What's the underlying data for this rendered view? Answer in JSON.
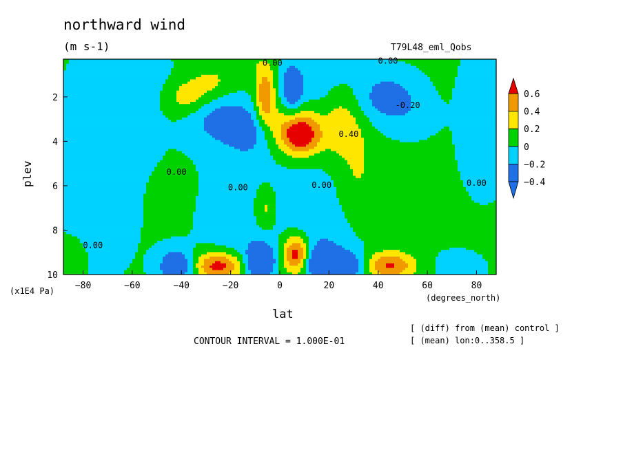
{
  "chart_data": {
    "type": "heatmap",
    "title": "northward wind",
    "units": "(m s-1)",
    "run_label": "T79L48_eml_Qobs",
    "xlabel": "lat",
    "ylabel": "plev",
    "x_units": "(degrees_north)",
    "y_units": "(x1E4 Pa)",
    "xlim": [
      -88,
      88
    ],
    "ylim": [
      10,
      0.3
    ],
    "x_ticks": [
      -80,
      -60,
      -40,
      -20,
      0,
      20,
      40,
      60,
      80
    ],
    "x_tick_labels": [
      "−80",
      "−60",
      "−40",
      "−20",
      "0",
      "20",
      "40",
      "60",
      "80"
    ],
    "y_ticks": [
      2,
      4,
      6,
      8,
      10
    ],
    "y_tick_labels": [
      "2",
      "4",
      "6",
      "8",
      "10"
    ],
    "colorbar": {
      "levels": [
        -0.4,
        -0.2,
        0,
        0.2,
        0.4,
        0.6
      ],
      "labels": [
        "−0.4",
        "−0.2",
        "0",
        "0.2",
        "0.4",
        "0.6"
      ],
      "colors": [
        "#1f6fe6",
        "#00d2ff",
        "#00d200",
        "#ffe600",
        "#f09a00",
        "#e60000"
      ],
      "extend_low_color": "#1f6fe6",
      "extend_high_color": "#e60000"
    },
    "contour_labels": [
      {
        "text": "0.00",
        "lat": -3,
        "plev": 0.6
      },
      {
        "text": "0.00",
        "lat": 44,
        "plev": 0.5
      },
      {
        "text": "-0.20",
        "lat": 52,
        "plev": 2.5
      },
      {
        "text": "0.40",
        "lat": 28,
        "plev": 3.8
      },
      {
        "text": "0.00",
        "lat": -42,
        "plev": 5.5
      },
      {
        "text": "0.00",
        "lat": -17,
        "plev": 6.2
      },
      {
        "text": "0.00",
        "lat": 17,
        "plev": 6.1
      },
      {
        "text": "0.00",
        "lat": 80,
        "plev": 6.0
      },
      {
        "text": "0.00",
        "lat": -76,
        "plev": 8.8
      }
    ],
    "contour_interval": "CONTOUR INTERVAL = 1.000E-01",
    "notes": [
      "[ (diff) from (mean) control ]",
      "[ (mean) lon:0..358.5 ]"
    ]
  }
}
